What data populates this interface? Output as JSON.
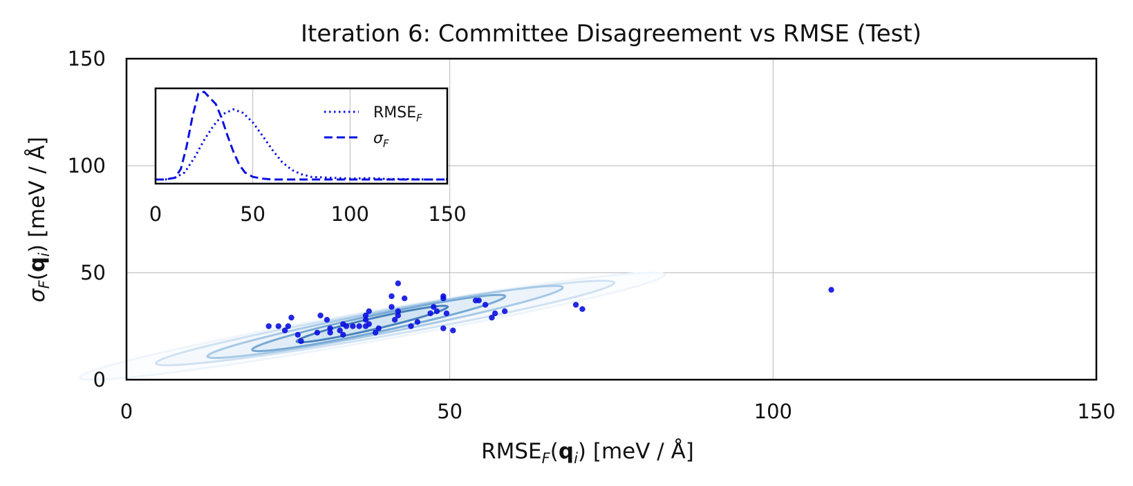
{
  "chart_data": [
    {
      "type": "scatter",
      "title": "Iteration 6: Committee Disagreement vs RMSE (Test)",
      "xlabel": {
        "base": "RMSE",
        "sub": "F",
        "arg_open": "(",
        "arg_bold": "q",
        "arg_sub": "i",
        "arg_close": ")",
        "unit": " [meV / Å]"
      },
      "ylabel": {
        "base": "σ",
        "sub": "F",
        "arg_open": "(",
        "arg_bold": "q",
        "arg_sub": "i",
        "arg_close": ")",
        "unit": " [meV / Å]"
      },
      "xlim": [
        0,
        150
      ],
      "ylim": [
        0,
        150
      ],
      "xticks": [
        0,
        50,
        100,
        150
      ],
      "yticks": [
        0,
        50,
        100,
        150
      ],
      "x_tick_labels": [
        "0",
        "50",
        "100",
        "150"
      ],
      "y_tick_labels": [
        "0",
        "50",
        "100",
        "150"
      ],
      "grid": true,
      "colors": {
        "points": "#0a10e0",
        "contour_dark": "#3b72ad",
        "contour_light": "#d8e7f5",
        "axes": "#000000",
        "grid": "#b0b0b0"
      },
      "points": [
        {
          "x": 22,
          "y": 25
        },
        {
          "x": 23.5,
          "y": 25
        },
        {
          "x": 24.5,
          "y": 23
        },
        {
          "x": 25,
          "y": 25
        },
        {
          "x": 25.5,
          "y": 29
        },
        {
          "x": 26.5,
          "y": 21
        },
        {
          "x": 27,
          "y": 18
        },
        {
          "x": 29.5,
          "y": 22
        },
        {
          "x": 30,
          "y": 30
        },
        {
          "x": 31,
          "y": 28
        },
        {
          "x": 31.5,
          "y": 24
        },
        {
          "x": 31.5,
          "y": 22
        },
        {
          "x": 33,
          "y": 23
        },
        {
          "x": 33.5,
          "y": 21
        },
        {
          "x": 33.5,
          "y": 26
        },
        {
          "x": 34,
          "y": 25
        },
        {
          "x": 35,
          "y": 25
        },
        {
          "x": 36,
          "y": 25
        },
        {
          "x": 37,
          "y": 25
        },
        {
          "x": 37,
          "y": 28
        },
        {
          "x": 37,
          "y": 30
        },
        {
          "x": 37.5,
          "y": 26
        },
        {
          "x": 37.5,
          "y": 32
        },
        {
          "x": 38.5,
          "y": 22
        },
        {
          "x": 39,
          "y": 24
        },
        {
          "x": 41,
          "y": 39
        },
        {
          "x": 41,
          "y": 34
        },
        {
          "x": 41.5,
          "y": 28
        },
        {
          "x": 42,
          "y": 30
        },
        {
          "x": 42,
          "y": 32
        },
        {
          "x": 42,
          "y": 45
        },
        {
          "x": 43,
          "y": 38
        },
        {
          "x": 44,
          "y": 25
        },
        {
          "x": 45,
          "y": 27
        },
        {
          "x": 47,
          "y": 31
        },
        {
          "x": 47.5,
          "y": 34
        },
        {
          "x": 48,
          "y": 32
        },
        {
          "x": 49,
          "y": 24
        },
        {
          "x": 49,
          "y": 38
        },
        {
          "x": 49,
          "y": 39
        },
        {
          "x": 49.5,
          "y": 31
        },
        {
          "x": 50.5,
          "y": 23
        },
        {
          "x": 54,
          "y": 37
        },
        {
          "x": 54.5,
          "y": 37
        },
        {
          "x": 55.5,
          "y": 35
        },
        {
          "x": 56.5,
          "y": 29
        },
        {
          "x": 57,
          "y": 31
        },
        {
          "x": 58.5,
          "y": 32
        },
        {
          "x": 69.5,
          "y": 35
        },
        {
          "x": 70.5,
          "y": 33
        },
        {
          "x": 109,
          "y": 42
        }
      ],
      "density_contours": [
        {
          "cx": 38,
          "cy": 25,
          "rx": 46,
          "ry": 7,
          "angle_deg": 10,
          "level": 1
        },
        {
          "cx": 40,
          "cy": 26.5,
          "rx": 36,
          "ry": 6,
          "angle_deg": 10,
          "level": 2
        },
        {
          "cx": 40,
          "cy": 27,
          "rx": 28,
          "ry": 5,
          "angle_deg": 11,
          "level": 3
        },
        {
          "cx": 39,
          "cy": 26.5,
          "rx": 20,
          "ry": 4,
          "angle_deg": 12,
          "level": 4
        },
        {
          "cx": 38,
          "cy": 26,
          "rx": 12,
          "ry": 2.6,
          "angle_deg": 13,
          "level": 5
        }
      ]
    },
    {
      "type": "line",
      "title": "",
      "xlim": [
        0,
        150
      ],
      "xticks": [
        0,
        50,
        100,
        150
      ],
      "x_tick_labels": [
        "0",
        "50",
        "100",
        "150"
      ],
      "grid": true,
      "legend_position": "upper-right",
      "series": [
        {
          "name": {
            "base": "RMSE",
            "sub": "F"
          },
          "style": "dotted",
          "color": "#0a10e0",
          "x": [
            0,
            5,
            10,
            15,
            20,
            25,
            30,
            35,
            40,
            45,
            50,
            55,
            60,
            65,
            70,
            75,
            80,
            90,
            100,
            110,
            120,
            130,
            140,
            150
          ],
          "y": [
            0.0,
            0.0,
            0.02,
            0.08,
            0.25,
            0.45,
            0.62,
            0.75,
            0.8,
            0.76,
            0.65,
            0.5,
            0.34,
            0.2,
            0.11,
            0.06,
            0.03,
            0.02,
            0.01,
            0.015,
            0.005,
            0.005,
            0.0,
            0.0
          ]
        },
        {
          "name": {
            "base": "σ",
            "sub": "F"
          },
          "style": "dashed",
          "color": "#0a10e0",
          "x": [
            0,
            5,
            10,
            13,
            16,
            19,
            22,
            25,
            28,
            31,
            34,
            37,
            40,
            43,
            46,
            50,
            55,
            60,
            70,
            80,
            100,
            120,
            150
          ],
          "y": [
            0.0,
            0.0,
            0.02,
            0.12,
            0.38,
            0.72,
            0.98,
            1.0,
            0.93,
            0.86,
            0.7,
            0.5,
            0.32,
            0.17,
            0.08,
            0.03,
            0.01,
            0.0,
            0.0,
            0.0,
            0.0,
            0.0,
            0.0
          ]
        }
      ]
    }
  ]
}
